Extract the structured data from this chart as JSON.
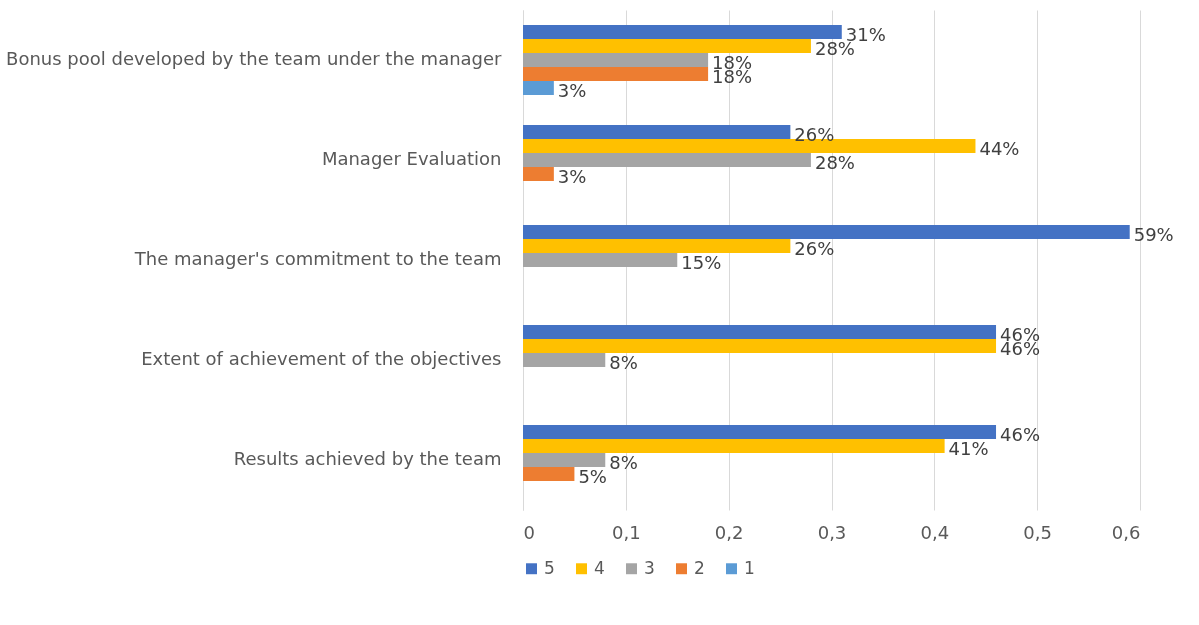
{
  "chart_data": {
    "type": "bar",
    "orientation": "horizontal",
    "categories": [
      "Bonus pool developed by the team under the manager",
      "Manager Evaluation",
      "The manager's commitment to the team",
      "Extent of achievement of the objectives",
      "Results achieved by the team"
    ],
    "series": [
      {
        "name": "5",
        "color": "#4472c4",
        "values": [
          0.31,
          0.26,
          0.59,
          0.46,
          0.46
        ],
        "value_labels": [
          "31%",
          "26%",
          "59%",
          "46%",
          "46%"
        ]
      },
      {
        "name": "4",
        "color": "#ffc000",
        "values": [
          0.28,
          0.44,
          0.26,
          0.46,
          0.41
        ],
        "value_labels": [
          "28%",
          "44%",
          "26%",
          "46%",
          "41%"
        ]
      },
      {
        "name": "3",
        "color": "#a5a5a5",
        "values": [
          0.18,
          0.28,
          0.15,
          0.08,
          0.08
        ],
        "value_labels": [
          "18%",
          "28%",
          "15%",
          "8%",
          "8%"
        ]
      },
      {
        "name": "2",
        "color": "#ed7d31",
        "values": [
          0.18,
          0.03,
          null,
          null,
          0.05
        ],
        "value_labels": [
          "18%",
          "3%",
          null,
          null,
          "5%"
        ]
      },
      {
        "name": "1",
        "color": "#5b9bd5",
        "values": [
          0.03,
          null,
          null,
          null,
          null
        ],
        "value_labels": [
          "3%",
          null,
          null,
          null,
          null
        ]
      }
    ],
    "xlim": [
      0,
      0.6
    ],
    "xticks": [
      0,
      {
        "value": 0.1,
        "label": "0,1"
      },
      {
        "value": 0.2,
        "label": "0,2"
      },
      {
        "value": 0.3,
        "label": "0,3"
      },
      {
        "value": 0.4,
        "label": "0,4"
      },
      {
        "value": 0.5,
        "label": "0,5"
      },
      {
        "value": 0.6,
        "label": "0,6"
      }
    ],
    "grid": "x",
    "legend": "bottom"
  }
}
